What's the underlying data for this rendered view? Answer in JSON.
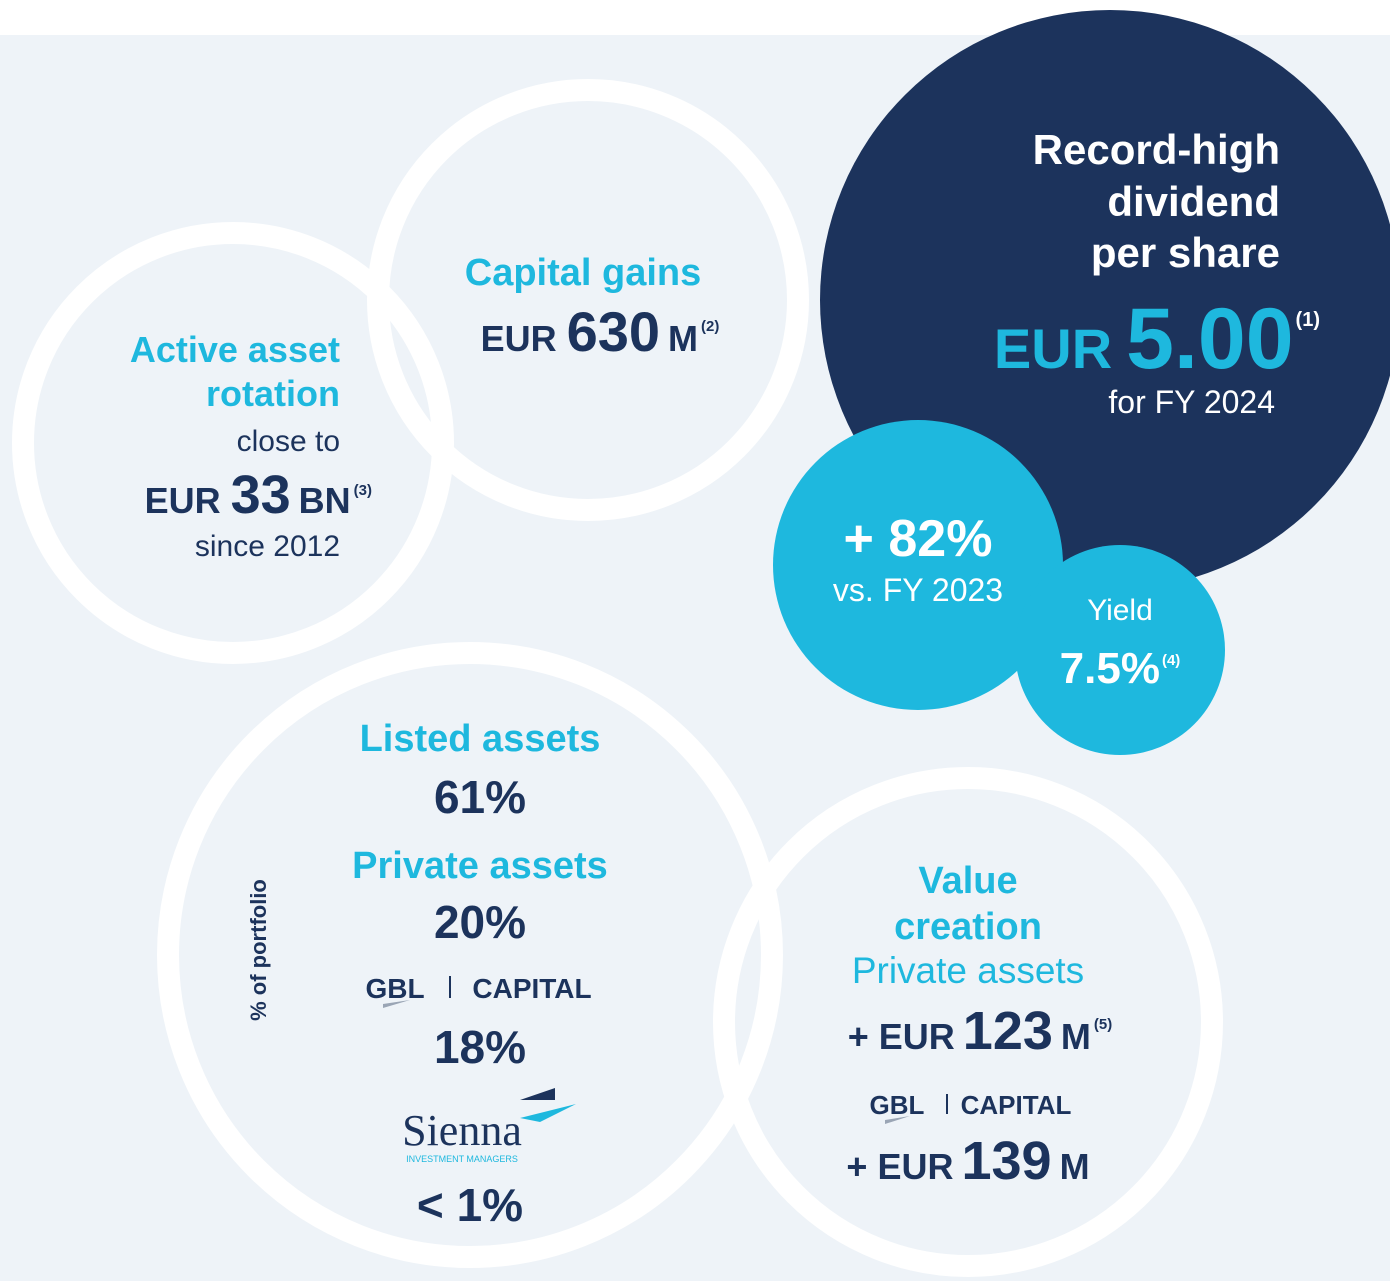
{
  "rotation": {
    "title": [
      "Active asset",
      "rotation"
    ],
    "pre": "close to",
    "currency": "EUR",
    "amount": "33",
    "unit": "BN",
    "note": "(3)",
    "post": "since 2012"
  },
  "capital_gains": {
    "title": "Capital gains",
    "currency": "EUR",
    "amount": "630",
    "unit": "M",
    "note": "(2)"
  },
  "dividend": {
    "title": [
      "Record-high",
      "dividend",
      "per share"
    ],
    "currency": "EUR",
    "amount": "5.00",
    "note": "(1)",
    "post": "for FY 2024"
  },
  "growth": {
    "value": "+ 82%",
    "post": "vs. FY 2023"
  },
  "yield": {
    "title": "Yield",
    "value": "7.5%",
    "note": "(4)"
  },
  "portfolio": {
    "axis_label": "% of portfolio",
    "listed": {
      "title": "Listed assets",
      "value": "61%"
    },
    "private": {
      "title": "Private assets",
      "value": "20%"
    },
    "gbl_capital": {
      "logo": [
        "GBL",
        "CAPITAL"
      ],
      "value": "18%"
    },
    "sienna": {
      "logo": [
        "Sienna",
        "INVESTMENT MANAGERS"
      ],
      "value": "< 1%"
    }
  },
  "value_creation": {
    "title": [
      "Value",
      "creation"
    ],
    "subtitle": "Private assets",
    "private_value": {
      "sign": "+ EUR",
      "amount": "123",
      "unit": "M",
      "note": "(5)"
    },
    "gbl_capital": {
      "logo": [
        "GBL",
        "CAPITAL"
      ],
      "sign": "+ EUR",
      "amount": "139",
      "unit": "M"
    }
  }
}
